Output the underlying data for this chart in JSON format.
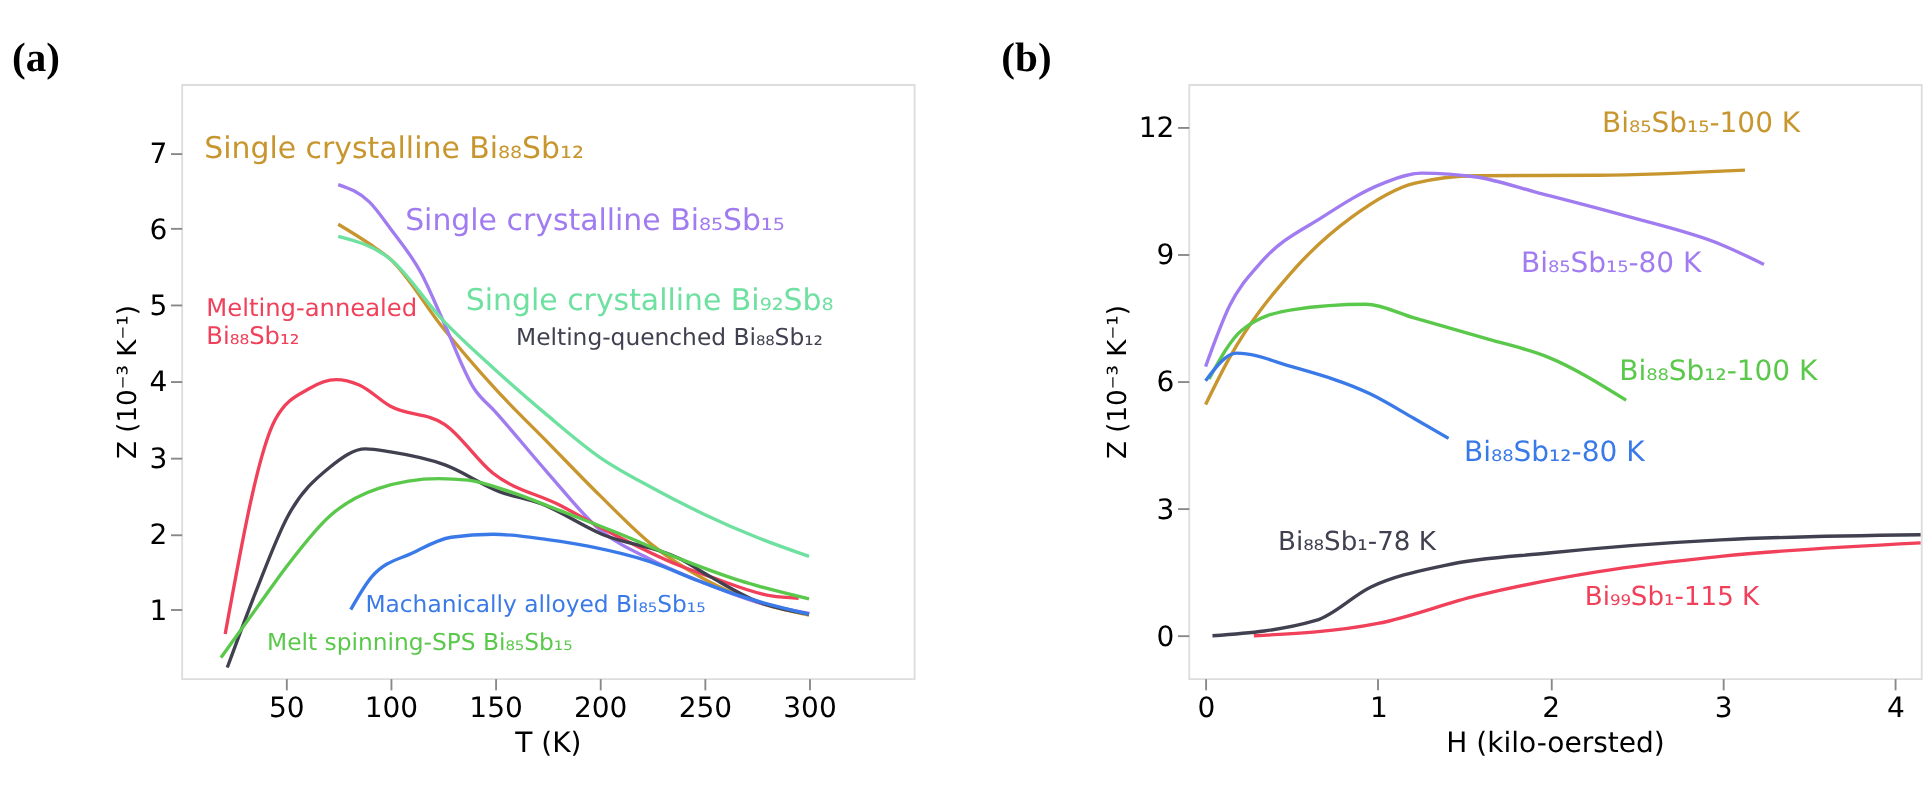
{
  "chart_data": [
    {
      "type": "line",
      "title": "(a)",
      "xlabel": "T (K)",
      "ylabel": "Z (10⁻³ K⁻¹)",
      "xlim": [
        0,
        350
      ],
      "ylim": [
        0.1,
        7.9
      ],
      "xticks": [
        50,
        100,
        150,
        200,
        250,
        300
      ],
      "yticks": [
        1,
        2,
        3,
        4,
        5,
        6,
        7
      ],
      "series": [
        {
          "name": "Single crystalline Bi₈₈Sb₁₂",
          "color": "#c8962e",
          "x": [
            75,
            90,
            100,
            125,
            150,
            175,
            200,
            225,
            250,
            275,
            300
          ],
          "values": [
            6.06,
            5.8,
            5.6,
            4.7,
            3.9,
            3.2,
            2.5,
            1.85,
            1.4,
            1.1,
            0.93
          ]
        },
        {
          "name": "Single crystalline Bi₈₅Sb₁₅",
          "color": "#a07cf0",
          "x": [
            75,
            90,
            100,
            115,
            125,
            140,
            150,
            175,
            200,
            225,
            250,
            275,
            300
          ],
          "values": [
            6.58,
            6.35,
            6.0,
            5.4,
            4.8,
            3.9,
            3.6,
            2.8,
            2.05,
            1.65,
            1.35,
            1.1,
            0.95
          ]
        },
        {
          "name": "Single crystalline Bi₉₂Sb₈",
          "color": "#6ee0a0",
          "x": [
            75,
            100,
            125,
            150,
            175,
            200,
            225,
            250,
            275,
            300
          ],
          "values": [
            5.9,
            5.6,
            4.8,
            4.15,
            3.55,
            3.0,
            2.6,
            2.25,
            1.95,
            1.7
          ]
        },
        {
          "name": "Melting-annealed\nBi₈₈Sb₁₂",
          "color": "#f0405a",
          "x": [
            21,
            45,
            61,
            74,
            85,
            100,
            126,
            149,
            181,
            201,
            238,
            253,
            282,
            295
          ],
          "values": [
            0.68,
            3.5,
            3.9,
            4.02,
            3.95,
            3.67,
            3.43,
            2.79,
            2.37,
            2.07,
            1.58,
            1.43,
            1.18,
            1.15
          ]
        },
        {
          "name": "Melting-quenched Bi₈₈Sb₁₂",
          "color": "#404050",
          "x": [
            22,
            36,
            51,
            71,
            88,
            100,
            126,
            152,
            172,
            201,
            238,
            253,
            276,
            300
          ],
          "values": [
            0.24,
            1.26,
            2.23,
            2.87,
            3.11,
            3.07,
            2.9,
            2.55,
            2.39,
            1.99,
            1.67,
            1.43,
            1.1,
            0.94
          ]
        },
        {
          "name": "Machanically alloyed Bi₈₅Sb₁₅",
          "color": "#3a7ae8",
          "x": [
            81,
            91,
            111,
            129,
            149,
            175,
            195,
            224,
            247,
            267,
            300
          ],
          "values": [
            1.0,
            1.43,
            1.75,
            1.95,
            1.99,
            1.92,
            1.83,
            1.63,
            1.38,
            1.18,
            0.94
          ]
        },
        {
          "name": "Melt spinning-SPS Bi₈₅Sb₁₅",
          "color": "#5ac84a",
          "x": [
            19,
            36,
            51,
            71,
            94,
            123,
            137,
            157,
            181,
            210,
            238,
            267,
            300
          ],
          "values": [
            0.37,
            1.02,
            1.59,
            2.23,
            2.59,
            2.72,
            2.7,
            2.55,
            2.3,
            1.99,
            1.67,
            1.38,
            1.14
          ]
        }
      ]
    },
    {
      "type": "line",
      "title": "(b)",
      "xlabel": "H (kilo-oersted)",
      "ylabel": "Z (10⁻³ K⁻¹)",
      "xlim": [
        -0.1,
        4.15
      ],
      "ylim": [
        -1,
        13
      ],
      "xticks": [
        0,
        1,
        2,
        3,
        4
      ],
      "yticks": [
        0,
        3,
        6,
        9,
        12
      ],
      "series": [
        {
          "name": "Bi₈₅Sb₁₅-100 K",
          "color": "#c8962e",
          "x": [
            0,
            0.14,
            0.5,
            0.85,
            1.21,
            1.57,
            2.28,
            3.13
          ],
          "values": [
            5.45,
            6.56,
            8.57,
            9.87,
            10.66,
            10.84,
            10.85,
            10.97
          ]
        },
        {
          "name": "Bi₈₅Sb₁₅-80 K",
          "color": "#a07cf0",
          "x": [
            0,
            0.14,
            0.32,
            0.68,
            1.03,
            1.25,
            1.57,
            1.92,
            2.46,
            2.99,
            3.24
          ],
          "values": [
            6.34,
            7.78,
            8.79,
            9.87,
            10.66,
            10.9,
            10.81,
            10.45,
            9.87,
            9.22,
            8.75
          ]
        },
        {
          "name": "Bi₈₈Sb₁₂-100 K",
          "color": "#5ac84a",
          "x": [
            0.02,
            0.21,
            0.5,
            0.93,
            1.21,
            1.64,
            1.99,
            2.44
          ],
          "values": [
            6.05,
            7.2,
            7.68,
            7.81,
            7.49,
            6.99,
            6.56,
            5.55
          ]
        },
        {
          "name": "Bi₈₈Sb₁₂-80 K",
          "color": "#3a7ae8",
          "x": [
            0,
            0.18,
            0.5,
            0.96,
            1.21,
            1.41
          ],
          "values": [
            6.01,
            6.66,
            6.34,
            5.69,
            5.12,
            4.65
          ]
        },
        {
          "name": "Bi₈₈Sb₁-78 K",
          "color": "#404050",
          "x": [
            0.04,
            0.64,
            0.96,
            1.39,
            1.99,
            2.99,
            4.15
          ],
          "values": [
            0,
            0.36,
            1.15,
            1.66,
            1.95,
            2.26,
            2.38
          ]
        },
        {
          "name": "Bi₉₉Sb₁-115 K",
          "color": "#f0405a",
          "x": [
            0.28,
            1.0,
            1.57,
            2.28,
            2.99,
            4.15
          ],
          "values": [
            0,
            0.29,
            0.94,
            1.51,
            1.87,
            2.19
          ]
        }
      ]
    }
  ]
}
